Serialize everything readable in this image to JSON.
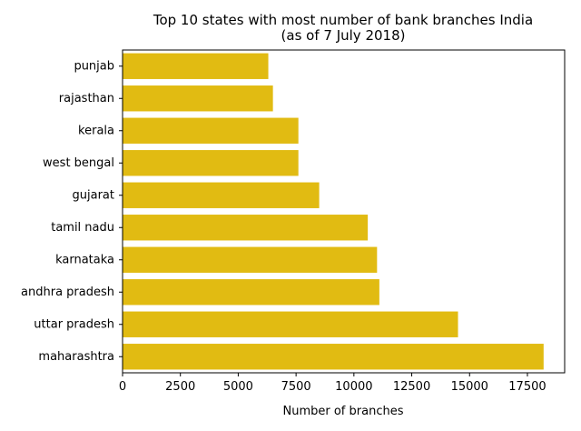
{
  "chart_data": {
    "type": "bar",
    "orientation": "horizontal",
    "title_lines": [
      "Top 10 states with most number of bank branches India",
      "(as of 7 July 2018)"
    ],
    "xlabel": "Number of branches",
    "ylabel": "",
    "categories": [
      "maharashtra",
      "uttar pradesh",
      "andhra pradesh",
      "karnataka",
      "tamil nadu",
      "gujarat",
      "west bengal",
      "kerala",
      "rajasthan",
      "punjab"
    ],
    "values": [
      18200,
      14500,
      11100,
      11000,
      10600,
      8500,
      7600,
      7600,
      6500,
      6300
    ],
    "xlim": [
      0,
      19110
    ],
    "xticks": [
      0,
      2500,
      5000,
      7500,
      10000,
      12500,
      15000,
      17500
    ],
    "bar_color": "#e1bb12",
    "grid": false,
    "legend": "none"
  }
}
